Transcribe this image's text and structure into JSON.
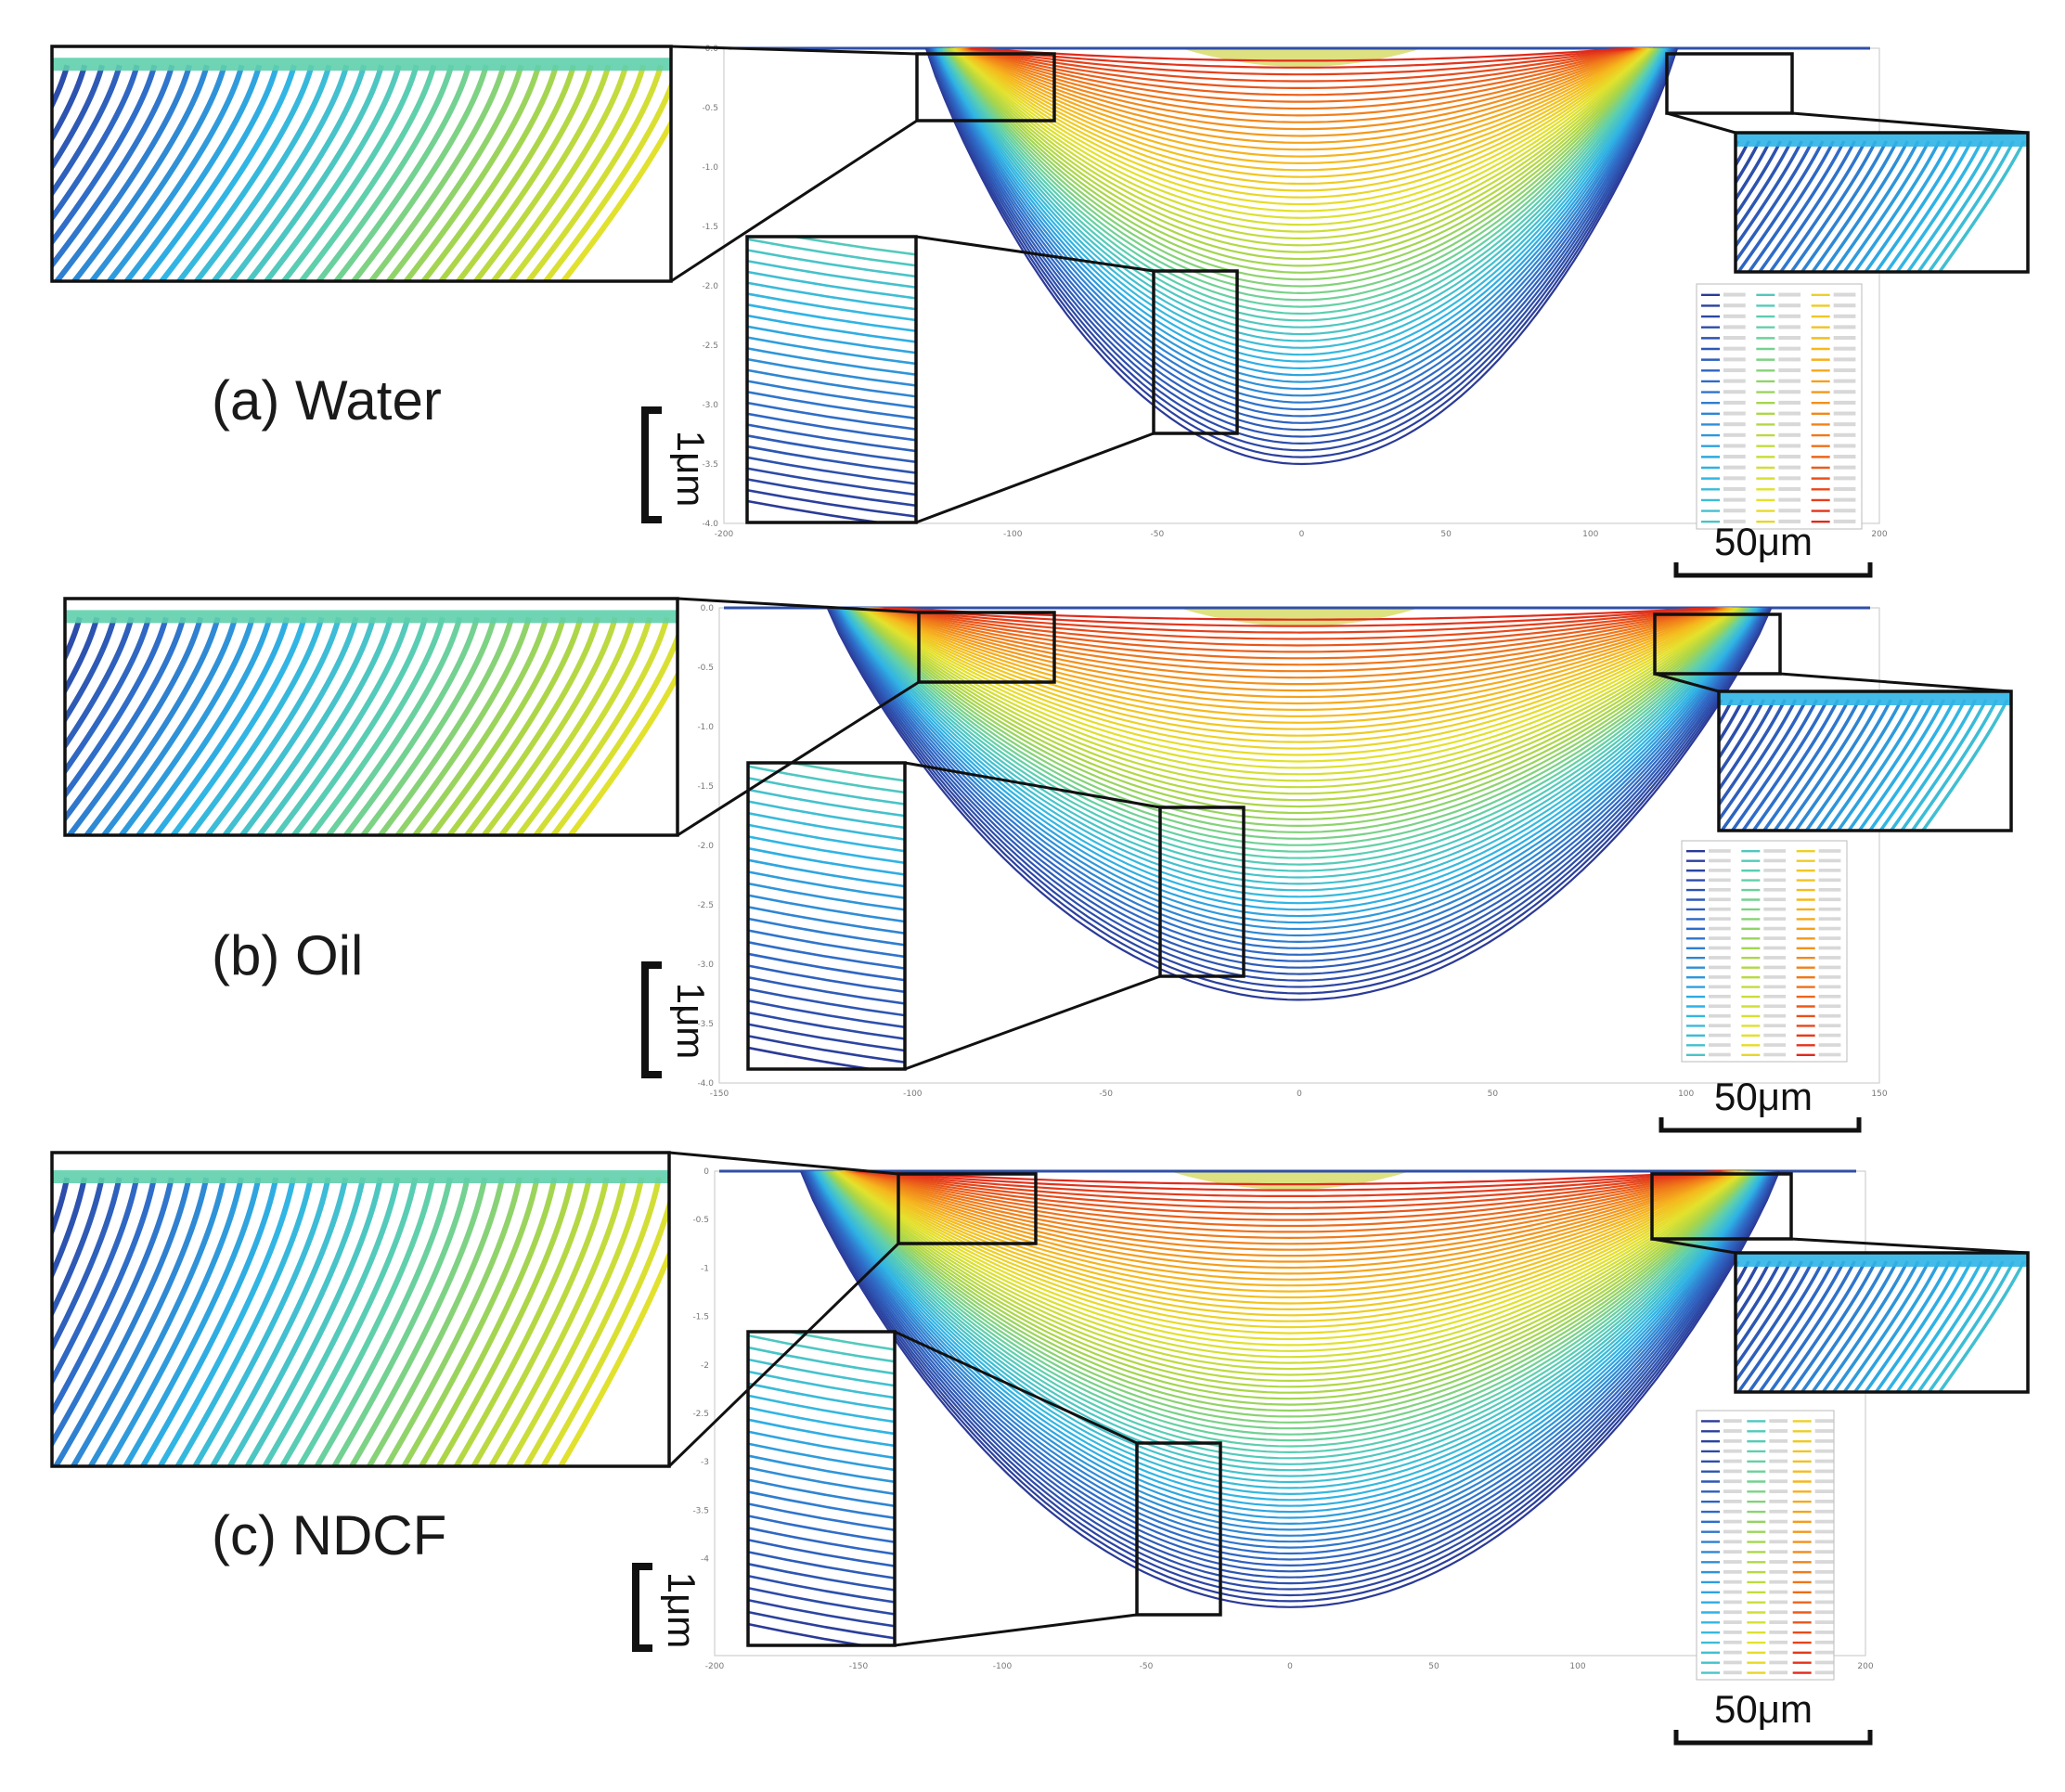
{
  "panels": [
    {
      "label": "(a) Water",
      "scale_vertical": "1μm",
      "scale_horizontal": "50μm",
      "chart_data": {
        "type": "line",
        "title": "",
        "xlabel": "",
        "ylabel": "",
        "xlim": [
          -200,
          200
        ],
        "ylim": [
          -4,
          0
        ],
        "x_ticks": [
          "-200",
          "-100",
          "-50",
          "0",
          "50",
          "100",
          "200"
        ],
        "y_ticks": [
          "0.0",
          "-0.5",
          "-1.0",
          "-1.5",
          "-2.0",
          "-2.5",
          "-3.0",
          "-3.5",
          "-4.0"
        ],
        "legend_position": "right",
        "colormap": [
          "#2b3a97",
          "#2f6cc8",
          "#2fb4e6",
          "#5ccfb0",
          "#a8d54a",
          "#e4e22c",
          "#f6b91e",
          "#f07a1a",
          "#e02a1c"
        ],
        "num_profiles": 60,
        "max_depth_um": 3.5,
        "half_width_um": 130
      }
    },
    {
      "label": "(b) Oil",
      "scale_vertical": "1μm",
      "scale_horizontal": "50μm",
      "chart_data": {
        "type": "line",
        "title": "",
        "xlabel": "",
        "ylabel": "",
        "xlim": [
          -150,
          150
        ],
        "ylim": [
          -4,
          0
        ],
        "x_ticks": [
          "-150",
          "-100",
          "-50",
          "0",
          "50",
          "100",
          "150"
        ],
        "y_ticks": [
          "0.0",
          "-0.5",
          "-1.0",
          "-1.5",
          "-2.0",
          "-2.5",
          "-3.0",
          "-3.5",
          "-4.0"
        ],
        "legend_position": "right",
        "colormap": [
          "#2b3a97",
          "#2f6cc8",
          "#2fb4e6",
          "#5ccfb0",
          "#a8d54a",
          "#e4e22c",
          "#f6b91e",
          "#f07a1a",
          "#e02a1c"
        ],
        "num_profiles": 60,
        "max_depth_um": 3.3,
        "half_width_um": 122
      }
    },
    {
      "label": "(c) NDCF",
      "scale_vertical": "1μm",
      "scale_horizontal": "50μm",
      "chart_data": {
        "type": "line",
        "title": "",
        "xlabel": "",
        "ylabel": "",
        "xlim": [
          -200,
          200
        ],
        "ylim": [
          -5,
          0
        ],
        "x_ticks": [
          "-200",
          "-150",
          "-100",
          "-50",
          "0",
          "50",
          "100",
          "150",
          "200"
        ],
        "y_ticks": [
          "0",
          "-0.5",
          "-1",
          "-1.5",
          "-2",
          "-2.5",
          "-3",
          "-3.5",
          "-4"
        ],
        "legend_position": "right",
        "colormap": [
          "#2b3a97",
          "#2f6cc8",
          "#2fb4e6",
          "#5ccfb0",
          "#a8d54a",
          "#e4e22c",
          "#f6b91e",
          "#f07a1a",
          "#e02a1c"
        ],
        "num_profiles": 72,
        "max_depth_um": 4.5,
        "half_width_um": 170
      }
    }
  ]
}
